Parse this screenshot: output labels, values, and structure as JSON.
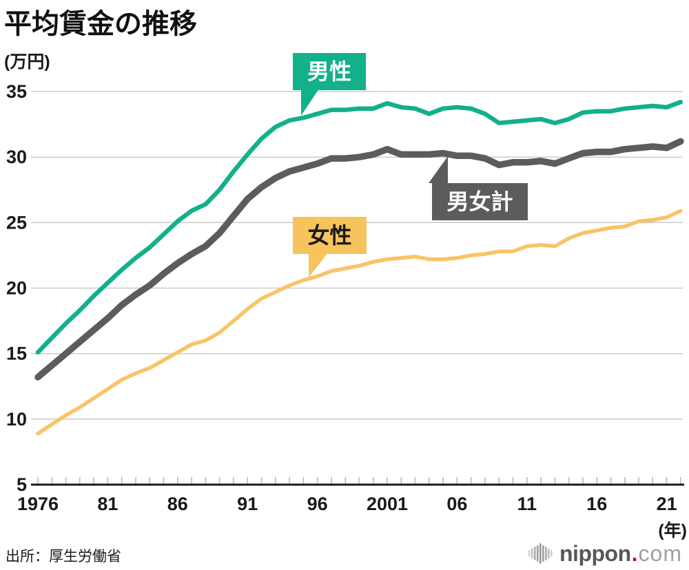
{
  "title": "平均賃金の推移",
  "source": "出所：厚生労働省",
  "y_axis": {
    "unit_label": "(万円)",
    "ticks": [
      35,
      30,
      25,
      20,
      15,
      10,
      5
    ]
  },
  "x_axis": {
    "unit_label": "(年)",
    "tick_labels": [
      {
        "label": "1976",
        "year": 1976
      },
      {
        "label": "81",
        "year": 1981
      },
      {
        "label": "86",
        "year": 1986
      },
      {
        "label": "91",
        "year": 1991
      },
      {
        "label": "96",
        "year": 1996
      },
      {
        "label": "2001",
        "year": 2001
      },
      {
        "label": "06",
        "year": 2006
      },
      {
        "label": "11",
        "year": 2011
      },
      {
        "label": "16",
        "year": 2016
      },
      {
        "label": "21",
        "year": 2021
      }
    ]
  },
  "annotations": {
    "male": {
      "label": "男性",
      "color": "#12b08b",
      "text_color": "#ffffff"
    },
    "total": {
      "label": "男女計",
      "color": "#5d5b5b",
      "text_color": "#ffffff"
    },
    "female": {
      "label": "女性",
      "color": "#f5c45c",
      "text_color": "#1a1a1a"
    }
  },
  "logo": {
    "text_bold": "nippon",
    "dot": ".",
    "text_light": "com"
  },
  "colors": {
    "male_accent": "#12b08b",
    "total_accent": "#5d5b5b",
    "female_accent": "#f8c468",
    "grid": "#cbcbcb",
    "axis": "#1a1a1a",
    "tick": "#b5b5b5",
    "logo_red": "#e60012",
    "logo_gray": "#595757",
    "logo_light_gray": "#9fa0a0"
  },
  "chart_data": {
    "type": "line",
    "title": "平均賃金の推移",
    "ylabel": "(万円)",
    "xlabel": "(年)",
    "ylim": [
      5,
      35
    ],
    "grid": "horizontal",
    "legend_position": "inline-callouts",
    "years": [
      1976,
      1977,
      1978,
      1979,
      1980,
      1981,
      1982,
      1983,
      1984,
      1985,
      1986,
      1987,
      1988,
      1989,
      1990,
      1991,
      1992,
      1993,
      1994,
      1995,
      1996,
      1997,
      1998,
      1999,
      2000,
      2001,
      2002,
      2003,
      2004,
      2005,
      2006,
      2007,
      2008,
      2009,
      2010,
      2011,
      2012,
      2013,
      2014,
      2015,
      2016,
      2017,
      2018,
      2019,
      2020,
      2021,
      2022
    ],
    "series": [
      {
        "name": "男性",
        "color": "#12b08b",
        "values": [
          15.1,
          16.2,
          17.3,
          18.3,
          19.4,
          20.4,
          21.4,
          22.3,
          23.1,
          24.1,
          25.1,
          25.9,
          26.4,
          27.5,
          28.9,
          30.2,
          31.4,
          32.3,
          32.8,
          33.0,
          33.3,
          33.6,
          33.6,
          33.7,
          33.7,
          34.1,
          33.8,
          33.7,
          33.3,
          33.7,
          33.8,
          33.7,
          33.3,
          32.6,
          32.7,
          32.8,
          32.9,
          32.6,
          32.9,
          33.4,
          33.5,
          33.5,
          33.7,
          33.8,
          33.9,
          33.8,
          34.2
        ]
      },
      {
        "name": "男女計",
        "color": "#5d5b5b",
        "values": [
          13.2,
          14.1,
          15.0,
          15.9,
          16.8,
          17.7,
          18.7,
          19.5,
          20.2,
          21.1,
          21.9,
          22.6,
          23.2,
          24.2,
          25.5,
          26.8,
          27.7,
          28.4,
          28.9,
          29.2,
          29.5,
          29.9,
          29.9,
          30.0,
          30.2,
          30.6,
          30.2,
          30.2,
          30.2,
          30.3,
          30.1,
          30.1,
          29.9,
          29.4,
          29.6,
          29.6,
          29.7,
          29.5,
          29.9,
          30.3,
          30.4,
          30.4,
          30.6,
          30.7,
          30.8,
          30.7,
          31.2
        ]
      },
      {
        "name": "女性",
        "color": "#f8c468",
        "values": [
          8.9,
          9.6,
          10.3,
          10.9,
          11.6,
          12.3,
          13.0,
          13.5,
          13.9,
          14.5,
          15.1,
          15.7,
          16.0,
          16.6,
          17.5,
          18.4,
          19.2,
          19.7,
          20.2,
          20.6,
          20.9,
          21.3,
          21.5,
          21.7,
          22.0,
          22.2,
          22.3,
          22.4,
          22.2,
          22.2,
          22.3,
          22.5,
          22.6,
          22.8,
          22.8,
          23.2,
          23.3,
          23.2,
          23.8,
          24.2,
          24.4,
          24.6,
          24.7,
          25.1,
          25.2,
          25.4,
          25.9
        ]
      }
    ]
  }
}
